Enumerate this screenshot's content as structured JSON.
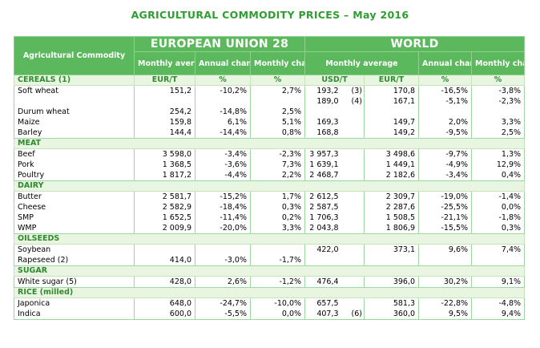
{
  "title": "AGRICULTURAL COMMODITY PRICES – May 2016",
  "header": {
    "commodity": "Agricultural Commodity",
    "eu": "EUROPEAN UNION 28",
    "world": "WORLD",
    "eu_monthly_avg": "Monthly average",
    "eu_annual": "Annual change",
    "eu_monthly_change": "Monthly change",
    "w_monthly_avg": "Monthly average",
    "w_annual": "Annual change",
    "w_monthly_change": "Monthly change"
  },
  "sections": [
    {
      "name": "CEREALS (1)",
      "units": [
        "EUR/T",
        "%",
        "%",
        "USD/T",
        "EUR/T",
        "%",
        "%"
      ],
      "rows": [
        [
          "Soft wheat",
          "151,2",
          "-10,2%",
          "2,7%",
          "193,2",
          "(3)",
          "170,8",
          "-16,5%",
          "-3,8%"
        ],
        [
          "",
          "",
          "",
          "",
          "189,0",
          "(4)",
          "167,1",
          "-5,1%",
          "-2,3%"
        ],
        [
          "Durum wheat",
          "254,2",
          "-14,8%",
          "2,5%",
          "",
          "",
          "",
          "",
          ""
        ],
        [
          "Maize",
          "159,8",
          "6,1%",
          "5,1%",
          "169,3",
          "",
          "149,7",
          "2,0%",
          "3,3%"
        ],
        [
          "Barley",
          "144,4",
          "-14,4%",
          "0,8%",
          "168,8",
          "",
          "149,2",
          "-9,5%",
          "2,5%"
        ]
      ]
    },
    {
      "name": "MEAT",
      "units": null,
      "rows": [
        [
          "Beef",
          "3 598,0",
          "-3,4%",
          "-2,3%",
          "3 957,3",
          "",
          "3 498,6",
          "-9,7%",
          "1,3%"
        ],
        [
          "Pork",
          "1 368,5",
          "-3,6%",
          "7,3%",
          "1 639,1",
          "",
          "1 449,1",
          "-4,9%",
          "12,9%"
        ],
        [
          "Poultry",
          "1 817,2",
          "-4,4%",
          "2,2%",
          "2 468,7",
          "",
          "2 182,6",
          "-3,4%",
          "0,4%"
        ]
      ]
    },
    {
      "name": "DAIRY",
      "units": null,
      "rows": [
        [
          "Butter",
          "2 581,7",
          "-15,2%",
          "1,7%",
          "2 612,5",
          "",
          "2 309,7",
          "-19,0%",
          "-1,4%"
        ],
        [
          "Cheese",
          "2 582,9",
          "-18,4%",
          "0,3%",
          "2 587,5",
          "",
          "2 287,6",
          "-25,5%",
          "0,0%"
        ],
        [
          "SMP",
          "1 652,5",
          "-11,4%",
          "0,2%",
          "1 706,3",
          "",
          "1 508,5",
          "-21,1%",
          "-1,8%"
        ],
        [
          "WMP",
          "2 009,9",
          "-20,0%",
          "3,3%",
          "2 043,8",
          "",
          "1 806,9",
          "-15,5%",
          "0,3%"
        ]
      ]
    },
    {
      "name": "OILSEEDS",
      "units": null,
      "rows": [
        [
          "Soybean",
          "",
          "",
          "",
          "422,0",
          "",
          "373,1",
          "9,6%",
          "7,4%"
        ],
        [
          "Rapeseed (2)",
          "414,0",
          "-3,0%",
          "-1,7%",
          "",
          "",
          "",
          "",
          ""
        ]
      ]
    },
    {
      "name": "SUGAR",
      "units": null,
      "rows": [
        [
          "White sugar (5)",
          "428,0",
          "2,6%",
          "-1,2%",
          "476,4",
          "",
          "396,0",
          "30,2%",
          "9,1%"
        ]
      ]
    },
    {
      "name": "RICE (milled)",
      "units": null,
      "rows": [
        [
          "Japonica",
          "648,0",
          "-24,7%",
          "-10,0%",
          "657,5",
          "",
          "581,3",
          "-22,8%",
          "-4,8%"
        ],
        [
          "Indica",
          "600,0",
          "-5,5%",
          "0,0%",
          "407,3",
          "(6)",
          "360,0",
          "9,5%",
          "9,4%"
        ]
      ]
    }
  ]
}
